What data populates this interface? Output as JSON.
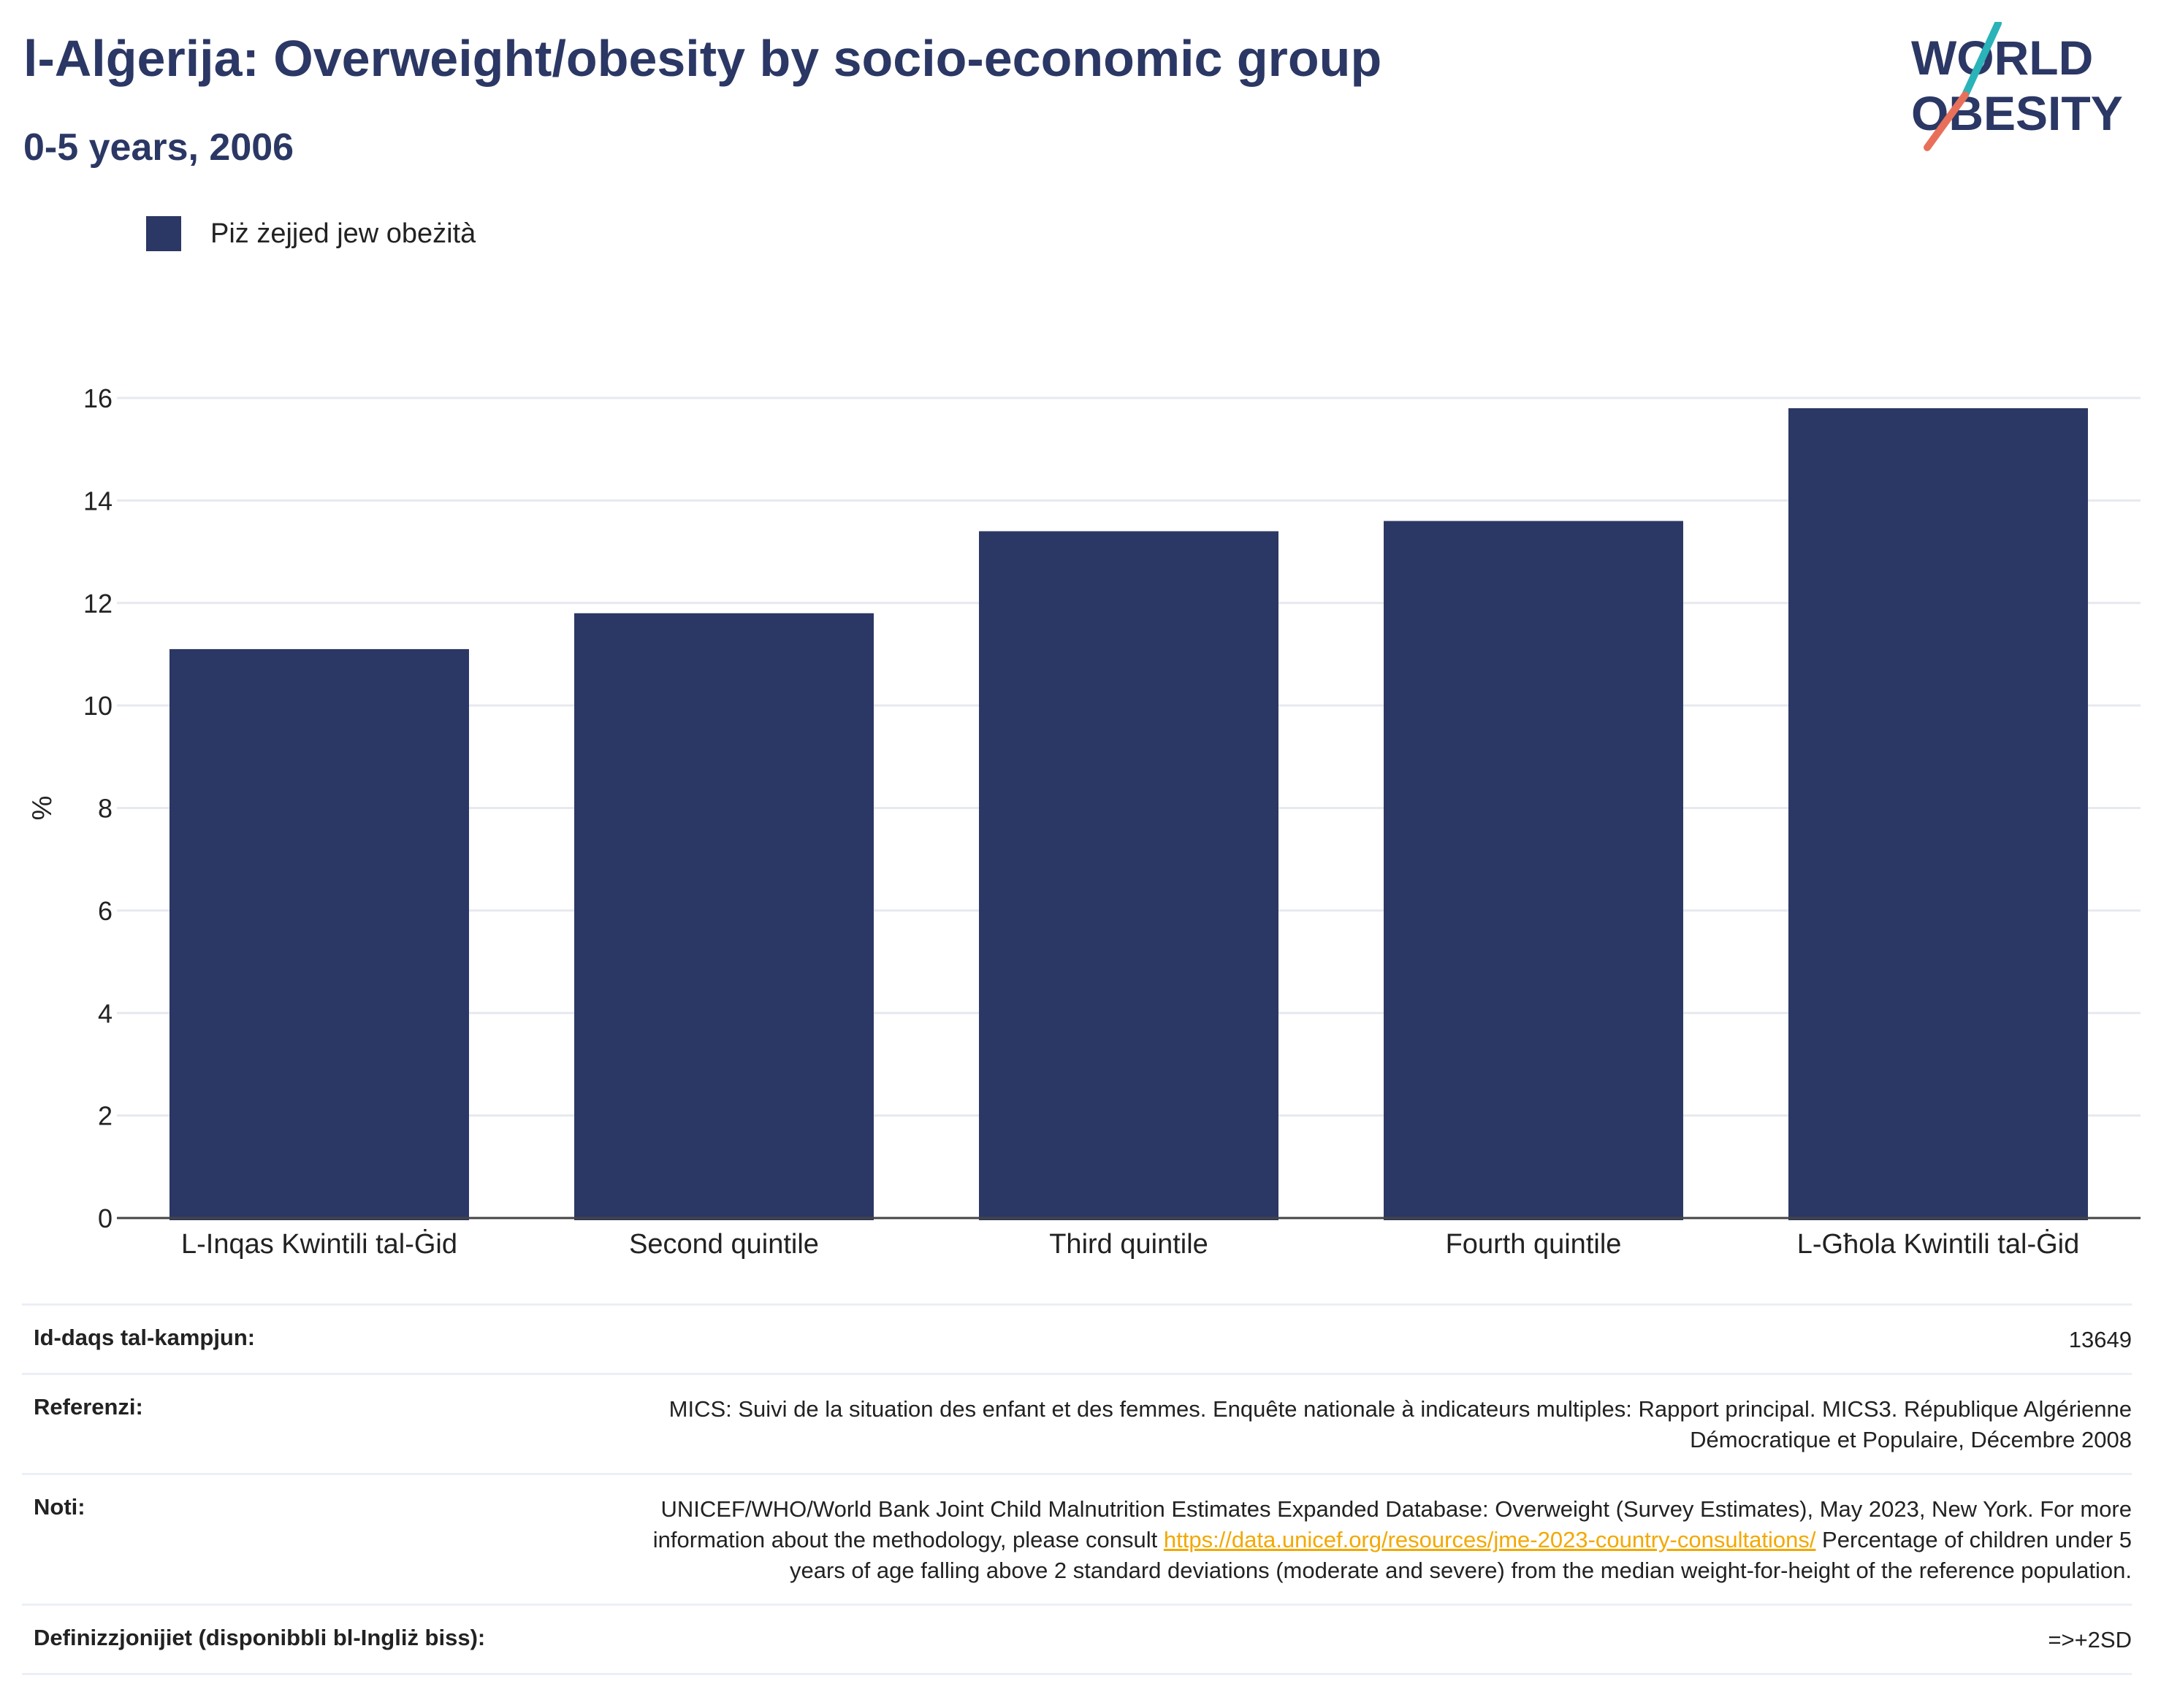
{
  "header": {
    "title": "l-Alġerija: Overweight/obesity by socio-economic group",
    "subtitle": "0-5 years, 2006"
  },
  "logo": {
    "line1": "WORLD",
    "line2": "OBESITY",
    "colors": {
      "text": "#2b3764",
      "slash_top": "#2ab3b9",
      "slash_bottom": "#e8705a"
    }
  },
  "legend": {
    "label": "Piż żejjed jew obeżità",
    "color": "#2b3764"
  },
  "chart_data": {
    "type": "bar",
    "categories": [
      "L-Inqas Kwintili tal-Ġid",
      "Second quintile",
      "Third quintile",
      "Fourth quintile",
      "L-Għola Kwintili tal-Ġid"
    ],
    "series": [
      {
        "name": "Piż żejjed jew obeżità",
        "values": [
          11.1,
          11.8,
          13.4,
          13.6,
          15.8
        ],
        "color": "#2b3764"
      }
    ],
    "ylabel": "%",
    "xlabel": "",
    "ylim": [
      0,
      16
    ],
    "yticks": [
      0,
      2,
      4,
      6,
      8,
      10,
      12,
      14,
      16
    ],
    "grid": true,
    "legend_position": "top-left"
  },
  "info": {
    "sample_size": {
      "key": "Id-daqs tal-kampjun:",
      "value": "13649"
    },
    "references": {
      "key": "Referenzi:",
      "value": "MICS: Suivi de la situation des enfant et des femmes. Enquête nationale à indicateurs multiples: Rapport principal. MICS3. République Algérienne Démocratique et Populaire, Décembre 2008"
    },
    "notes": {
      "key": "Noti:",
      "value_before": "UNICEF/WHO/World Bank Joint Child Malnutrition Estimates Expanded Database: Overweight (Survey Estimates), May 2023, New York. For more information about the methodology, please consult ",
      "link": "https://data.unicef.org/resources/jme-2023-country-consultations/",
      "value_after": " Percentage of children under 5 years of age falling above 2 standard deviations (moderate and severe) from the median weight-for-height of the reference population."
    },
    "definitions": {
      "key": "Definizzjonijiet (disponibbli bl-Ingliż biss):",
      "value": "=>+2SD"
    }
  }
}
